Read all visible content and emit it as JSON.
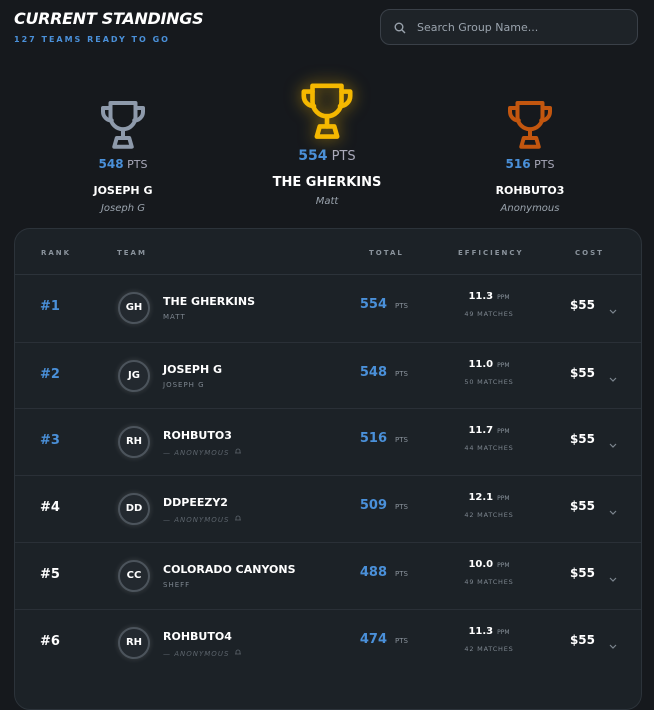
{
  "header": {
    "title": "CURRENT STANDINGS",
    "subtitle": "127 TEAMS READY TO GO",
    "search_placeholder": "Search Group Name..."
  },
  "podium": [
    {
      "points": 548,
      "unit": "PTS",
      "team": "JOSEPH G",
      "owner": "Joseph G"
    },
    {
      "points": 554,
      "unit": "PTS",
      "team": "THE GHERKINS",
      "owner": "Matt"
    },
    {
      "points": 516,
      "unit": "PTS",
      "team": "ROHBUTO3",
      "owner": "Anonymous"
    }
  ],
  "table": {
    "columns": [
      "RANK",
      "TEAM",
      "TOTAL",
      "EFFICIENCY",
      "COST"
    ],
    "rows": [
      {
        "rank": "#1",
        "initials": "GH",
        "team": "THE GHERKINS",
        "owner": "MATT",
        "total": 554,
        "total_unit": "PTS",
        "efficiency": "11.3",
        "efficiency_unit": "PPM",
        "matches": "49 MATCHES",
        "cost": "$55"
      },
      {
        "rank": "#2",
        "initials": "JG",
        "team": "JOSEPH G",
        "owner": "JOSEPH G",
        "total": 548,
        "total_unit": "PTS",
        "efficiency": "11.0",
        "efficiency_unit": "PPM",
        "matches": "50 MATCHES",
        "cost": "$55"
      },
      {
        "rank": "#3",
        "initials": "RH",
        "team": "ROHBUTO3",
        "owner": "— ANONYMOUS",
        "total": 516,
        "total_unit": "PTS",
        "efficiency": "11.7",
        "efficiency_unit": "PPM",
        "matches": "44 MATCHES",
        "cost": "$55"
      },
      {
        "rank": "#4",
        "initials": "DD",
        "team": "DDPEEZY2",
        "owner": "— ANONYMOUS",
        "total": 509,
        "total_unit": "PTS",
        "efficiency": "12.1",
        "efficiency_unit": "PPM",
        "matches": "42 MATCHES",
        "cost": "$55"
      },
      {
        "rank": "#5",
        "initials": "CC",
        "team": "COLORADO CANYONS",
        "owner": "SHEFF",
        "total": 488,
        "total_unit": "PTS",
        "efficiency": "10.0",
        "efficiency_unit": "PPM",
        "matches": "49 MATCHES",
        "cost": "$55"
      },
      {
        "rank": "#6",
        "initials": "RH",
        "team": "ROHBUTO4",
        "owner": "— ANONYMOUS",
        "total": 474,
        "total_unit": "PTS",
        "efficiency": "11.3",
        "efficiency_unit": "PPM",
        "matches": "42 MATCHES",
        "cost": "$55"
      }
    ]
  }
}
